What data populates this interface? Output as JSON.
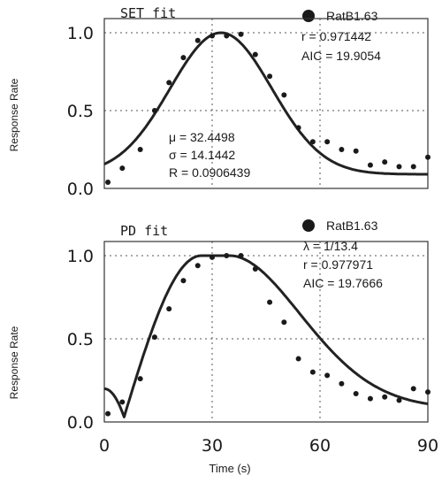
{
  "shared": {
    "xlabel": "Time (s)",
    "ylabel": "Response Rate"
  },
  "panels": [
    {
      "title": "SET fit",
      "legend": "RatB1.63",
      "stats": [
        "r = 0.971442",
        "AIC = 19.9054"
      ],
      "params": [
        "μ = 32.4498",
        "σ = 14.1442",
        "R  =  0.0906439"
      ]
    },
    {
      "title": "PD fit",
      "legend": "RatB1.63",
      "stats": [
        "λ = 1/13.4",
        "r = 0.977971",
        "AIC = 19.7666"
      ],
      "params": []
    }
  ],
  "chart_data": [
    {
      "type": "scatter",
      "title": "SET fit",
      "xlabel": "",
      "ylabel": "Response Rate",
      "xlim": [
        0,
        90
      ],
      "ylim": [
        0,
        1.0
      ],
      "yticks": [
        "0.0",
        "0.5",
        "1.0"
      ],
      "grid": true,
      "legend_placement": "top-right",
      "points": {
        "name": "RatB1.63",
        "x": [
          1,
          5,
          10,
          14,
          18,
          22,
          26,
          30,
          34,
          38,
          42,
          46,
          50,
          54,
          58,
          62,
          66,
          70,
          74,
          78,
          82,
          86,
          90
        ],
        "y": [
          0.04,
          0.13,
          0.25,
          0.5,
          0.68,
          0.84,
          0.95,
          0.98,
          0.98,
          0.99,
          0.86,
          0.72,
          0.6,
          0.39,
          0.3,
          0.3,
          0.25,
          0.24,
          0.15,
          0.17,
          0.14,
          0.14,
          0.2
        ]
      },
      "fit": {
        "model": "SET",
        "mu": 32.4498,
        "sigma": 14.1442,
        "R": 0.0906439
      }
    },
    {
      "type": "scatter",
      "title": "PD fit",
      "xlabel": "Time (s)",
      "ylabel": "Response Rate",
      "xlim": [
        0,
        90
      ],
      "ylim": [
        0,
        1.0
      ],
      "xticks": [
        "0",
        "30",
        "60",
        "90"
      ],
      "yticks": [
        "0.0",
        "0.5",
        "1.0"
      ],
      "grid": true,
      "legend_placement": "top-right",
      "points": {
        "name": "RatB1.63",
        "x": [
          1,
          5,
          10,
          14,
          18,
          22,
          26,
          30,
          34,
          38,
          42,
          46,
          50,
          54,
          58,
          62,
          66,
          70,
          74,
          78,
          82,
          86,
          90
        ],
        "y": [
          0.05,
          0.12,
          0.26,
          0.51,
          0.68,
          0.85,
          0.94,
          0.99,
          1.0,
          1.0,
          0.92,
          0.72,
          0.6,
          0.38,
          0.3,
          0.28,
          0.23,
          0.17,
          0.14,
          0.15,
          0.13,
          0.2,
          0.18
        ]
      },
      "fit": {
        "model": "PD",
        "lambda": "1/13.4",
        "curve": "dip near x≈5 to ~0.03, plateau at 1.0 between x≈27 and x≈35, decay to ~0.08 at x=90"
      }
    }
  ]
}
